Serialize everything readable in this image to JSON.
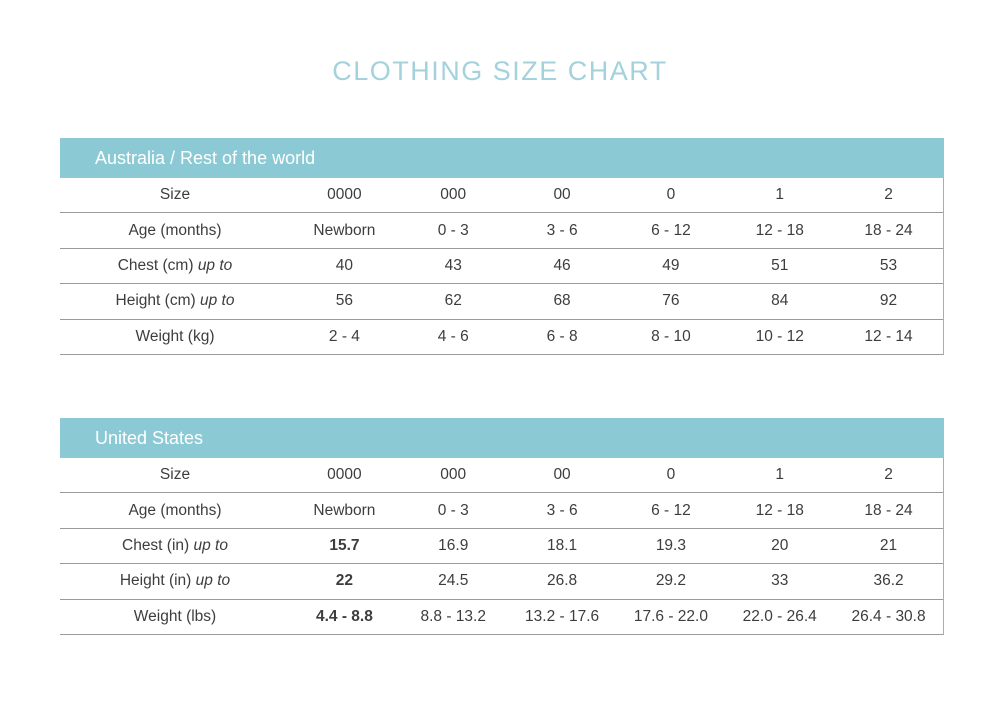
{
  "page_title": "CLOTHING SIZE CHART",
  "colors": {
    "accent_teal": "#8BCAD5",
    "title_teal": "#A3D2DC",
    "text": "#3D3D3D",
    "row_line": "#9B9B9B",
    "side_border": "#ACACAC",
    "header_text": "#FFFFFF"
  },
  "tables": [
    {
      "region": "Australia / Rest of the world",
      "rows": [
        {
          "label": "Size",
          "italic_suffix": "",
          "values": [
            "0000",
            "000",
            "00",
            "0",
            "1",
            "2"
          ],
          "bold_indices": []
        },
        {
          "label": "Age (months)",
          "italic_suffix": "",
          "values": [
            "Newborn",
            "0 - 3",
            "3 - 6",
            "6 - 12",
            "12 - 18",
            "18 - 24"
          ],
          "bold_indices": []
        },
        {
          "label": "Chest (cm)",
          "italic_suffix": "up to",
          "values": [
            "40",
            "43",
            "46",
            "49",
            "51",
            "53"
          ],
          "bold_indices": []
        },
        {
          "label": "Height (cm)",
          "italic_suffix": "up to",
          "values": [
            "56",
            "62",
            "68",
            "76",
            "84",
            "92"
          ],
          "bold_indices": []
        },
        {
          "label": "Weight (kg)",
          "italic_suffix": "",
          "values": [
            "2 - 4",
            "4 - 6",
            "6 - 8",
            "8 - 10",
            "10 - 12",
            "12 - 14"
          ],
          "bold_indices": []
        }
      ]
    },
    {
      "region": "United States",
      "rows": [
        {
          "label": "Size",
          "italic_suffix": "",
          "values": [
            "0000",
            "000",
            "00",
            "0",
            "1",
            "2"
          ],
          "bold_indices": []
        },
        {
          "label": "Age (months)",
          "italic_suffix": "",
          "values": [
            "Newborn",
            "0 - 3",
            "3 - 6",
            "6 - 12",
            "12 - 18",
            "18 - 24"
          ],
          "bold_indices": []
        },
        {
          "label": "Chest (in)",
          "italic_suffix": "up to",
          "values": [
            "15.7",
            "16.9",
            "18.1",
            "19.3",
            "20",
            "21"
          ],
          "bold_indices": [
            0
          ]
        },
        {
          "label": "Height (in)",
          "italic_suffix": "up to",
          "values": [
            "22",
            "24.5",
            "26.8",
            "29.2",
            "33",
            "36.2"
          ],
          "bold_indices": [
            0
          ]
        },
        {
          "label": "Weight (lbs)",
          "italic_suffix": "",
          "values": [
            "4.4 - 8.8",
            "8.8 - 13.2",
            "13.2 - 17.6",
            "17.6 - 22.0",
            "22.0 - 26.4",
            "26.4 - 30.8"
          ],
          "bold_indices": [
            0
          ]
        }
      ]
    }
  ]
}
